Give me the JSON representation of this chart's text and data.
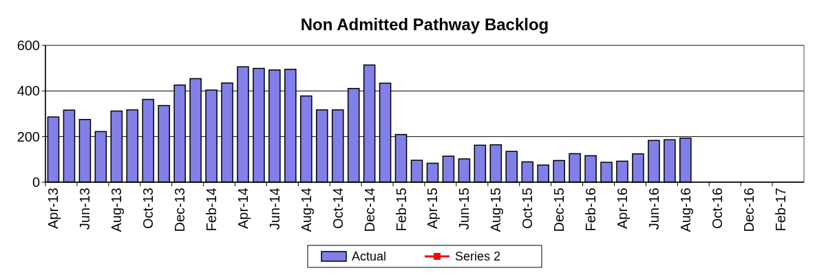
{
  "chart_data": {
    "type": "bar",
    "title": "Non Admitted Pathway Backlog",
    "categories": [
      "Apr-13",
      null,
      "Jun-13",
      null,
      "Aug-13",
      null,
      "Oct-13",
      null,
      "Dec-13",
      null,
      "Feb-14",
      null,
      "Apr-14",
      null,
      "Jun-14",
      null,
      "Aug-14",
      null,
      "Oct-14",
      null,
      "Dec-14",
      null,
      "Feb-15",
      null,
      "Apr-15",
      null,
      "Jun-15",
      null,
      "Aug-15",
      null,
      "Oct-15",
      null,
      "Dec-15",
      null,
      "Feb-16",
      null,
      "Apr-16",
      null,
      "Jun-16",
      null,
      "Aug-16",
      null,
      "Oct-16",
      null,
      "Dec-16",
      null,
      "Feb-17",
      null
    ],
    "series": [
      {
        "name": "Actual",
        "color": "#8080e8",
        "values": [
          286,
          316,
          275,
          222,
          312,
          317,
          363,
          336,
          426,
          454,
          404,
          435,
          506,
          499,
          492,
          495,
          378,
          317,
          317,
          411,
          514,
          434,
          209,
          96,
          83,
          114,
          102,
          162,
          164,
          135,
          89,
          75,
          95,
          125,
          116,
          87,
          92,
          124,
          183,
          186,
          193,
          null,
          null,
          null,
          null,
          null,
          null,
          null
        ]
      },
      {
        "name": "Series 2",
        "type": "line",
        "color": "#ff0000",
        "marker": "square",
        "values": [
          null,
          null,
          null,
          null,
          null,
          null,
          null,
          null,
          null,
          null,
          null,
          null,
          null,
          null,
          null,
          null,
          null,
          null,
          null,
          null,
          null,
          null,
          null,
          null,
          null,
          null,
          null,
          null,
          null,
          null,
          null,
          null,
          null,
          null,
          null,
          null,
          null,
          null,
          null,
          null,
          null,
          null,
          null,
          null,
          null,
          null,
          null,
          null
        ]
      }
    ],
    "ylim": [
      0,
      600
    ],
    "yticks": [
      0,
      200,
      400,
      600
    ],
    "grid": "y",
    "legend": "bottom"
  }
}
